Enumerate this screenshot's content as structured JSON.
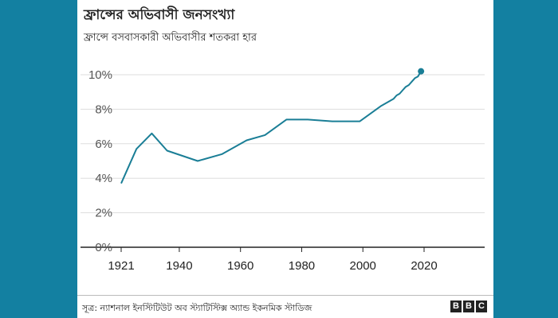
{
  "title": "ফ্রান্সের অভিবাসী জনসংখ্যা",
  "subtitle": "ফ্রান্সে বসবাসকারী অভিবাসীর শতকরা হার",
  "source": "সূত্র: ন্যাশনাল ইনস্টিটিউট অব স্ট্যাটিস্টিক্স অ্যান্ড ইকনমিক স্টাডিজ",
  "logo_letters": [
    "B",
    "B",
    "C"
  ],
  "colors": {
    "background": "#1380a1",
    "line": "#1a7e96",
    "grid": "#dddddd",
    "axis": "#222222"
  },
  "chart_data": {
    "type": "line",
    "title": "ফ্রান্সের অভিবাসী জনসংখ্যা",
    "subtitle": "ফ্রান্সে বসবাসকারী অভিবাসীর শতকরা হার",
    "xlabel": "",
    "ylabel": "",
    "xlim": [
      1921,
      2040
    ],
    "ylim": [
      0,
      10
    ],
    "x_ticks": [
      1921,
      1940,
      1960,
      1980,
      2000,
      2020
    ],
    "x_tick_labels": [
      "1921",
      "1940",
      "1960",
      "1980",
      "2000",
      "2020"
    ],
    "y_ticks": [
      0,
      2,
      4,
      6,
      8,
      10
    ],
    "y_tick_labels": [
      "0%",
      "2%",
      "4%",
      "6%",
      "8%",
      "10%"
    ],
    "grid": true,
    "series": [
      {
        "x": [
          1921,
          1926,
          1931,
          1936,
          1946,
          1954,
          1962,
          1968,
          1975,
          1982,
          1990,
          1999,
          2006,
          2010,
          2011,
          2012,
          2013,
          2014,
          2015,
          2016,
          2017,
          2018,
          2019
        ],
        "y": [
          3.7,
          5.7,
          6.6,
          5.6,
          5.0,
          5.4,
          6.2,
          6.5,
          7.4,
          7.4,
          7.3,
          7.3,
          8.2,
          8.6,
          8.8,
          8.9,
          9.1,
          9.3,
          9.4,
          9.6,
          9.8,
          9.9,
          10.2
        ]
      }
    ],
    "end_marker": {
      "x": 2019,
      "y": 10.2
    }
  }
}
